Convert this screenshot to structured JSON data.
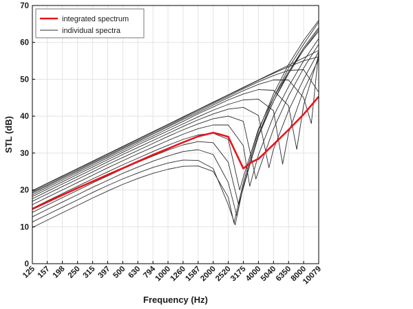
{
  "chart_data": {
    "type": "line",
    "xlabel": "Frequency (Hz)",
    "ylabel": "STL (dB)",
    "x_scale": "log",
    "xlim": [
      125,
      10079
    ],
    "ylim": [
      0,
      70
    ],
    "yticks": [
      0,
      10,
      20,
      30,
      40,
      50,
      60,
      70
    ],
    "xtick_labels": [
      "125",
      "157",
      "198",
      "250",
      "315",
      "397",
      "500",
      "630",
      "794",
      "1000",
      "1260",
      "1587",
      "2000",
      "2520",
      "3175",
      "4000",
      "5040",
      "6350",
      "8000",
      "10079"
    ],
    "grid": true,
    "legend_position": "top-left",
    "legend": {
      "integrated": "integrated spectrum",
      "individual": "individual spectra"
    },
    "colors": {
      "integrated": "#e8141b",
      "individual": "#2b2b2b",
      "grid": "#e3e3e3"
    },
    "series": [
      {
        "name": "integrated spectrum",
        "x": [
          125,
          157,
          198,
          250,
          315,
          397,
          500,
          630,
          794,
          1000,
          1260,
          1587,
          2000,
          2200,
          2520,
          3175,
          3500,
          3800,
          4000,
          5040,
          6350,
          8000,
          10079
        ],
        "y": [
          14.8,
          16.7,
          18.6,
          20.5,
          22.3,
          24.1,
          25.9,
          27.7,
          29.5,
          31.2,
          32.9,
          34.5,
          35.5,
          35.1,
          34.4,
          25.8,
          27.2,
          28.0,
          28.4,
          32.3,
          36.3,
          40.5,
          45.3
        ]
      }
    ],
    "individual_series": [
      {
        "x": [
          125,
          157,
          198,
          250,
          315,
          397,
          500,
          630,
          794,
          1000,
          1260,
          1587,
          2000,
          2520,
          3175,
          4000,
          5040,
          6350,
          8000,
          10079
        ],
        "y": [
          19.8,
          21.8,
          23.8,
          25.8,
          27.8,
          29.8,
          31.8,
          33.8,
          35.8,
          37.8,
          39.8,
          41.8,
          43.8,
          45.8,
          47.8,
          49.8,
          51.8,
          53.8,
          55.8,
          57.8
        ]
      },
      {
        "x": [
          125,
          157,
          198,
          250,
          315,
          397,
          500,
          630,
          794,
          1000,
          1260,
          1587,
          2000,
          2520,
          3175,
          4000,
          5040,
          6350,
          8000,
          10079
        ],
        "y": [
          19.7,
          21.7,
          23.7,
          25.7,
          27.7,
          29.7,
          31.7,
          33.7,
          35.7,
          37.7,
          39.7,
          41.7,
          43.7,
          45.7,
          47.7,
          49.7,
          51.6,
          53.4,
          55.0,
          56.1
        ]
      },
      {
        "x": [
          125,
          157,
          198,
          250,
          315,
          397,
          500,
          630,
          794,
          1000,
          1260,
          1587,
          2000,
          2520,
          3175,
          4000,
          5040,
          6350,
          8000,
          10079
        ],
        "y": [
          19.4,
          21.4,
          23.4,
          25.4,
          27.4,
          29.4,
          31.4,
          33.4,
          35.4,
          37.4,
          39.4,
          41.4,
          43.4,
          45.4,
          47.4,
          49.3,
          51.0,
          52.4,
          52.6,
          46.5
        ]
      },
      {
        "x": [
          125,
          157,
          198,
          250,
          315,
          397,
          500,
          630,
          794,
          1000,
          1260,
          1587,
          2000,
          2520,
          3175,
          4000,
          5040,
          6350,
          8000,
          9000,
          10079
        ],
        "y": [
          19.1,
          21.1,
          23.1,
          25.1,
          27.1,
          29.1,
          31.1,
          33.1,
          35.1,
          37.1,
          39.1,
          41.0,
          43.0,
          45.0,
          46.9,
          48.6,
          49.8,
          49.8,
          45.0,
          38.0,
          57.5
        ]
      },
      {
        "x": [
          125,
          157,
          198,
          250,
          315,
          397,
          500,
          630,
          794,
          1000,
          1260,
          1587,
          2000,
          2520,
          3175,
          4000,
          5040,
          6350,
          7200,
          8000,
          10079
        ],
        "y": [
          18.7,
          20.7,
          22.7,
          24.7,
          26.7,
          28.7,
          30.7,
          32.7,
          34.6,
          36.6,
          38.6,
          40.6,
          42.5,
          44.4,
          46.0,
          47.2,
          47.0,
          42.8,
          31.0,
          43.0,
          56.5
        ]
      },
      {
        "x": [
          125,
          157,
          198,
          250,
          315,
          397,
          500,
          630,
          794,
          1000,
          1260,
          1587,
          2000,
          2520,
          3175,
          4000,
          5040,
          5800,
          6350,
          8000,
          10079
        ],
        "y": [
          18.2,
          20.2,
          22.2,
          24.2,
          26.2,
          28.2,
          30.2,
          32.2,
          34.1,
          36.0,
          37.9,
          39.8,
          41.6,
          43.2,
          44.4,
          44.6,
          41.5,
          27.0,
          35.5,
          47.0,
          55.5
        ]
      },
      {
        "x": [
          125,
          157,
          198,
          250,
          315,
          397,
          500,
          630,
          794,
          1000,
          1260,
          1587,
          2000,
          2520,
          3175,
          4000,
          4700,
          5040,
          6350,
          8000,
          10079
        ],
        "y": [
          17.6,
          19.6,
          21.6,
          23.6,
          25.6,
          27.6,
          29.6,
          31.5,
          33.4,
          35.3,
          37.2,
          39.0,
          40.6,
          41.9,
          42.4,
          40.2,
          26.0,
          31.0,
          41.5,
          50.0,
          57.5
        ]
      },
      {
        "x": [
          125,
          157,
          198,
          250,
          315,
          397,
          500,
          630,
          794,
          1000,
          1260,
          1587,
          2000,
          2520,
          3175,
          3850,
          4000,
          5040,
          6350,
          8000,
          10079
        ],
        "y": [
          16.9,
          18.9,
          20.9,
          22.9,
          24.9,
          26.9,
          28.8,
          30.7,
          32.6,
          34.5,
          36.3,
          37.9,
          39.3,
          40.0,
          38.6,
          23.0,
          25.0,
          36.5,
          45.5,
          53.0,
          59.5
        ]
      },
      {
        "x": [
          125,
          157,
          198,
          250,
          315,
          397,
          500,
          630,
          794,
          1000,
          1260,
          1587,
          2000,
          2520,
          3175,
          3500,
          4000,
          5040,
          6350,
          8000,
          10079
        ],
        "y": [
          16.0,
          18.0,
          20.0,
          22.0,
          24.0,
          26.0,
          27.9,
          29.8,
          31.6,
          33.4,
          35.1,
          36.6,
          37.6,
          37.6,
          32.0,
          21.0,
          29.5,
          40.0,
          48.0,
          55.0,
          61.0
        ]
      },
      {
        "x": [
          125,
          157,
          198,
          250,
          315,
          397,
          500,
          630,
          794,
          1000,
          1260,
          1587,
          2000,
          2520,
          3000,
          3175,
          4000,
          5040,
          6350,
          8000,
          10079
        ],
        "y": [
          15.0,
          17.0,
          19.0,
          21.0,
          23.0,
          24.9,
          26.8,
          28.6,
          30.4,
          32.1,
          33.7,
          34.9,
          35.4,
          33.7,
          20.0,
          23.5,
          36.5,
          45.0,
          52.0,
          58.0,
          63.0
        ]
      },
      {
        "x": [
          125,
          157,
          198,
          250,
          315,
          397,
          500,
          630,
          794,
          1000,
          1260,
          1587,
          2000,
          2520,
          2950,
          3175,
          4000,
          5040,
          6350,
          8000,
          10079
        ],
        "y": [
          13.9,
          15.9,
          17.9,
          19.9,
          21.9,
          23.8,
          25.7,
          27.5,
          29.2,
          30.8,
          32.2,
          33.1,
          32.8,
          27.5,
          16.0,
          20.5,
          35.0,
          44.0,
          51.5,
          58.0,
          63.5
        ]
      },
      {
        "x": [
          125,
          157,
          198,
          250,
          315,
          397,
          500,
          630,
          794,
          1000,
          1260,
          1587,
          2000,
          2520,
          2870,
          3175,
          4000,
          5040,
          6350,
          8000,
          10079
        ],
        "y": [
          12.7,
          14.7,
          16.7,
          18.7,
          20.7,
          22.6,
          24.5,
          26.2,
          27.8,
          29.2,
          30.4,
          30.9,
          29.6,
          22.0,
          13.0,
          21.0,
          34.5,
          44.0,
          52.0,
          58.5,
          64.0
        ]
      },
      {
        "x": [
          125,
          157,
          198,
          250,
          315,
          397,
          500,
          630,
          794,
          1000,
          1260,
          1587,
          2000,
          2520,
          2800,
          3175,
          4000,
          5040,
          6350,
          8000,
          10079
        ],
        "y": [
          11.3,
          13.3,
          15.3,
          17.3,
          19.3,
          21.2,
          23.0,
          24.6,
          26.1,
          27.3,
          28.1,
          28.0,
          25.8,
          16.0,
          10.5,
          21.0,
          35.0,
          45.0,
          53.0,
          59.5,
          65.5
        ]
      },
      {
        "x": [
          125,
          157,
          198,
          250,
          315,
          397,
          500,
          630,
          794,
          1000,
          1260,
          1587,
          2000,
          2520,
          2750,
          3175,
          4000,
          5040,
          6350,
          8000,
          10079
        ],
        "y": [
          9.8,
          11.8,
          13.8,
          15.8,
          17.8,
          19.7,
          21.5,
          23.1,
          24.5,
          25.6,
          26.4,
          26.5,
          25.0,
          18.0,
          11.0,
          22.0,
          36.0,
          46.0,
          54.0,
          60.5,
          66.0
        ]
      }
    ]
  }
}
